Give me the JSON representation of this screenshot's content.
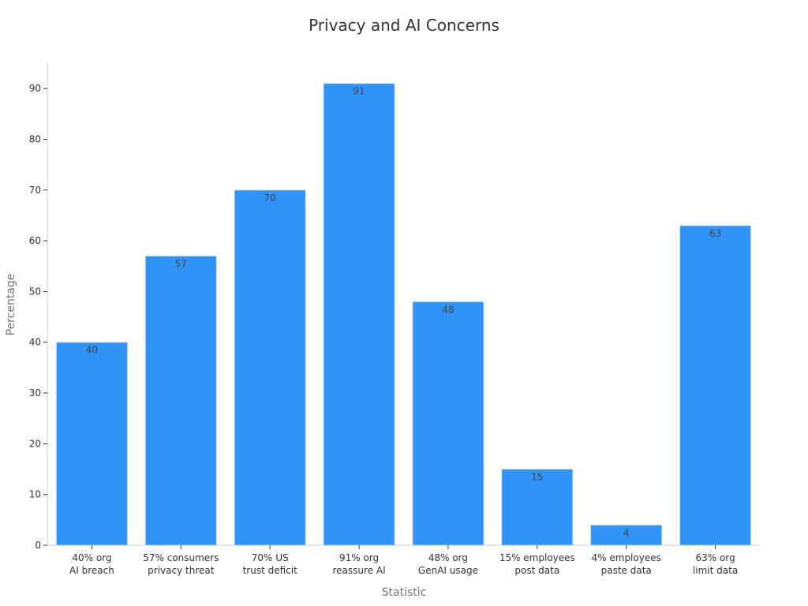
{
  "chart_data": {
    "type": "bar",
    "title": "Privacy and AI Concerns",
    "xlabel": "Statistic",
    "ylabel": "Percentage",
    "categories": [
      [
        "40% org",
        "AI breach"
      ],
      [
        "57% consumers",
        "privacy threat"
      ],
      [
        "70% US",
        "trust deficit"
      ],
      [
        "91% org",
        "reassure AI"
      ],
      [
        "48% org",
        "GenAI usage"
      ],
      [
        "15% employees",
        "post data"
      ],
      [
        "4% employees",
        "paste data"
      ],
      [
        "63% org",
        "limit data"
      ]
    ],
    "values": [
      40,
      57,
      70,
      91,
      48,
      15,
      4,
      63
    ],
    "data_labels": [
      "40",
      "57",
      "70",
      "91",
      "48",
      "15",
      "4",
      "63"
    ],
    "ylim": [
      0,
      95
    ],
    "yticks": [
      0,
      10,
      20,
      30,
      40,
      50,
      60,
      70,
      80,
      90
    ],
    "bar_color": "#2f93f7",
    "bar_edge_color": "#dce6f0",
    "grid": false,
    "legend": "none"
  }
}
